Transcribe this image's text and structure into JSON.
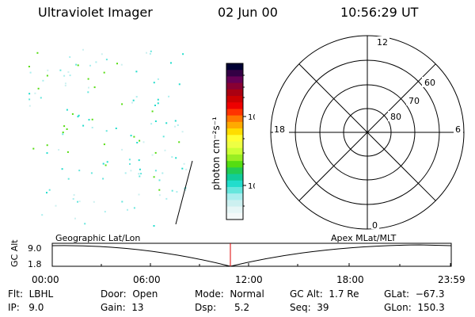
{
  "header": {
    "title": "Ultraviolet Imager",
    "date": "02 Jun 00",
    "time": "10:56:29 UT"
  },
  "colorbar": {
    "unit_label": "photon cm⁻²s⁻¹",
    "ticks": [
      "100",
      "10"
    ],
    "colors": [
      "#000033",
      "#330044",
      "#660055",
      "#880033",
      "#aa0011",
      "#cc0000",
      "#ee0000",
      "#ff3300",
      "#ff7700",
      "#ffaa00",
      "#ffdd00",
      "#ffff33",
      "#eeff44",
      "#ccff33",
      "#99ee22",
      "#55dd11",
      "#22cc55",
      "#11cc99",
      "#22ddcc",
      "#66e6dd",
      "#aaeeee",
      "#ccf0f0",
      "#e6f6f6",
      "#f4f9f9"
    ]
  },
  "polar": {
    "hour_labels": [
      "12",
      "18",
      "6",
      "0"
    ],
    "lat_labels": [
      "60",
      "70",
      "80"
    ]
  },
  "timeline": {
    "ylabel": "GC Alt",
    "y_ticks": [
      "9.0",
      "1.8"
    ],
    "left_label": "Geographic Lat/Lon",
    "right_label": "Apex MLat/MLT",
    "x_ticks": [
      "00:00",
      "06:00",
      "12:00",
      "18:00",
      "23:59"
    ],
    "marker_color": "#dd0000"
  },
  "info": {
    "flt": "Flt:  LBHL",
    "ip": "IP:   9.0",
    "door": "Door:  Open",
    "gain": "Gain:  13",
    "mode": "Mode:  Normal",
    "dsp": "Dsp:      5.2",
    "gc_alt": "GC Alt:  1.7 Re",
    "seq": "Seq:  39",
    "glat": "GLat:  −67.3",
    "glon": "GLon:  150.3"
  }
}
